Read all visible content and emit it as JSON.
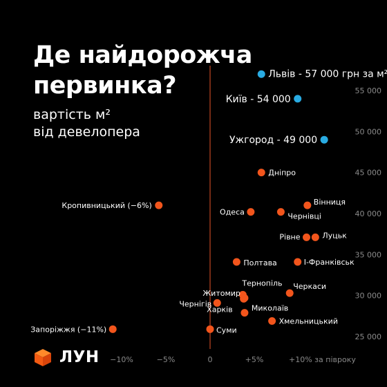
{
  "header": {
    "title_lines": [
      "Де найдорожча",
      "первинка?"
    ],
    "subtitle_lines": [
      "вартість м²",
      "від девелопера"
    ]
  },
  "logo": {
    "text": "ЛУН",
    "icon": "orange-cube-logo"
  },
  "colors": {
    "background": "#000000",
    "city": "#F2551C",
    "top_city": "#29ABE2",
    "zero_line": "#E8532A",
    "grid": "#3A3A3A",
    "text": "#FFFFFF",
    "tick": "#8A8A8A"
  },
  "chart_data": {
    "type": "scatter",
    "title": "Де найдорожча первинка?",
    "subtitle": "вартість м² від девелопера",
    "xlabel": "за півроку",
    "ylabel": "",
    "xlim": [
      -14,
      16
    ],
    "ylim": [
      23500,
      57000
    ],
    "x_ticks": [
      -10,
      -5,
      0,
      5,
      10
    ],
    "x_tick_labels": [
      "−10%",
      "−5%",
      "0",
      "+5%",
      "+10% за півроку"
    ],
    "y_ticks": [
      25000,
      30000,
      35000,
      40000,
      45000,
      50000,
      55000
    ],
    "y_tick_labels": [
      "25 000",
      "30 000",
      "35 000",
      "40 000",
      "45 000",
      "50 000",
      "55 000"
    ],
    "zero_line_x": 0,
    "grid": false,
    "points": [
      {
        "city": "Львів",
        "label": "Львів - 57 000 грн за м²",
        "x": 5.8,
        "y": 57000,
        "group": "top"
      },
      {
        "city": "Київ",
        "label": "Київ - 54 000",
        "x": 9.9,
        "y": 54000,
        "group": "top"
      },
      {
        "city": "Ужгород",
        "label": "Ужгород - 49 000",
        "x": 12.9,
        "y": 49000,
        "group": "top"
      },
      {
        "city": "Дніпро",
        "label": "Дніпро",
        "x": 5.8,
        "y": 45000,
        "group": "other"
      },
      {
        "city": "Кропивницький",
        "label": "Кропивницький (−6%)",
        "x": -5.8,
        "y": 41000,
        "group": "other"
      },
      {
        "city": "Вінниця",
        "label": "Вінниця",
        "x": 11.0,
        "y": 41000,
        "group": "other"
      },
      {
        "city": "Одеса",
        "label": "Одеса",
        "x": 4.6,
        "y": 40200,
        "group": "other"
      },
      {
        "city": "Чернівці",
        "label": "Чернівці",
        "x": 8.0,
        "y": 40200,
        "group": "other"
      },
      {
        "city": "Рівне",
        "label": "Рівне",
        "x": 10.9,
        "y": 37100,
        "group": "other"
      },
      {
        "city": "Луцьк",
        "label": "Луцьк",
        "x": 11.9,
        "y": 37100,
        "group": "other"
      },
      {
        "city": "Полтава",
        "label": "Полтава",
        "x": 3.0,
        "y": 34100,
        "group": "other"
      },
      {
        "city": "Івано-Франківськ",
        "label": "І-Франківськ",
        "x": 9.9,
        "y": 34100,
        "group": "other"
      },
      {
        "city": "Черкаси",
        "label": "Черкаси",
        "x": 9.0,
        "y": 30300,
        "group": "other"
      },
      {
        "city": "Тернопіль",
        "label": "Тернопіль",
        "x": 3.7,
        "y": 30100,
        "group": "other"
      },
      {
        "city": "Житомир",
        "label": "Житомир",
        "x": 3.9,
        "y": 29700,
        "group": "other"
      },
      {
        "city": "Чернігів",
        "label": "Чернігів",
        "x": 0.8,
        "y": 29100,
        "group": "other"
      },
      {
        "city": "Харків",
        "label": "Харків",
        "x": 3.8,
        "y": 29600,
        "group": "other"
      },
      {
        "city": "Миколаїв",
        "label": "Миколаїв",
        "x": 3.9,
        "y": 27900,
        "group": "other"
      },
      {
        "city": "Хмельницький",
        "label": "Хмельницький",
        "x": 7.0,
        "y": 26900,
        "group": "other"
      },
      {
        "city": "Запоріжжя",
        "label": "Запоріжжя (−11%)",
        "x": -11.0,
        "y": 25900,
        "group": "other"
      },
      {
        "city": "Суми",
        "label": "Суми",
        "x": 0.0,
        "y": 25900,
        "group": "other"
      }
    ]
  }
}
